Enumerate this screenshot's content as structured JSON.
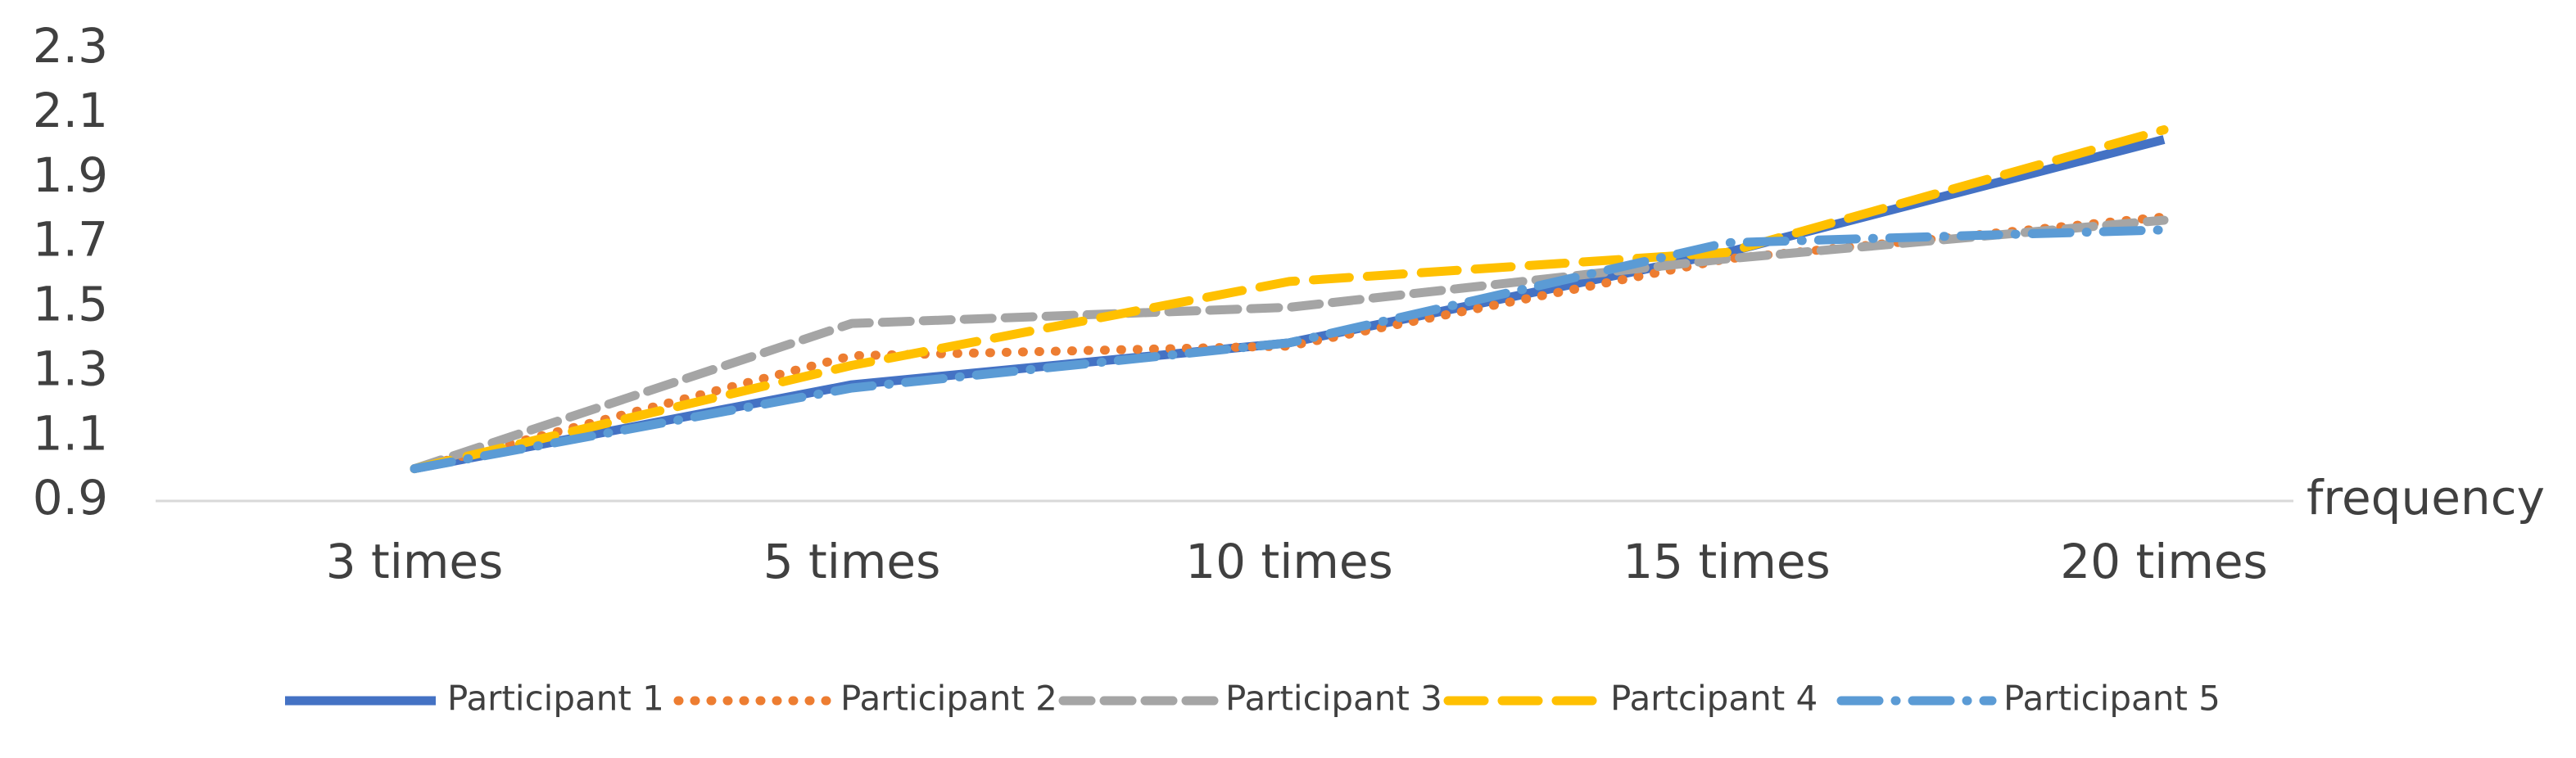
{
  "chart_data": {
    "type": "line",
    "x_label": "frequency",
    "categories": [
      "3 times",
      "5 times",
      "10 times",
      "15 times",
      "20 times"
    ],
    "series": [
      {
        "name": "Participant 1",
        "color": "#4472c4",
        "style": "solid",
        "values": [
          1.0,
          1.26,
          1.39,
          1.67,
          2.02
        ]
      },
      {
        "name": "Participant 2",
        "color": "#ed7d31",
        "style": "dotted",
        "values": [
          1.0,
          1.35,
          1.38,
          1.65,
          1.78
        ]
      },
      {
        "name": "Participant 3",
        "color": "#a5a5a5",
        "style": "dashed",
        "values": [
          1.0,
          1.45,
          1.5,
          1.65,
          1.77
        ]
      },
      {
        "name": "Partcipant 4",
        "color": "#ffc000",
        "style": "long-dash",
        "values": [
          1.0,
          1.32,
          1.58,
          1.67,
          2.05
        ]
      },
      {
        "name": "Participant 5",
        "color": "#5b9bd5",
        "style": "long-dash-dot",
        "values": [
          1.0,
          1.25,
          1.39,
          1.7,
          1.74
        ]
      }
    ],
    "ylim": [
      0.9,
      2.3
    ],
    "yticks": [
      0.9,
      1.1,
      1.3,
      1.5,
      1.7,
      1.9,
      2.1,
      2.3
    ],
    "grid": false,
    "legend": "bottom"
  }
}
